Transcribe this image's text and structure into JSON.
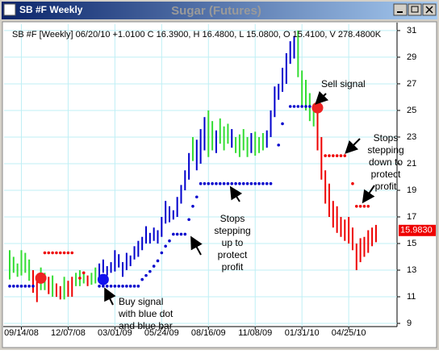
{
  "window_title": "SB #F Weekly",
  "chart_data": {
    "type": "ohlc",
    "title": "Sugar (Futures)",
    "info": "SB #F [Weekly] 06/20/10 +1.0100 C 16.3900, H 16.4800, L 15.0800, O 15.4100, V 278.4800K",
    "palette": {
      "G": "#33dd33",
      "B": "#0000cc",
      "R": "#ee0000"
    },
    "bars": {
      "signal": [
        "G",
        "G",
        "G",
        "G",
        "G",
        "G",
        "R",
        "R",
        "G",
        "G",
        "R",
        "G",
        "R",
        "R",
        "G",
        "R",
        "R",
        "G",
        "G",
        "G",
        "R",
        "G",
        "G",
        "B",
        "B",
        "B",
        "B",
        "B",
        "B",
        "B",
        "B",
        "B",
        "B",
        "B",
        "B",
        "B",
        "B",
        "B",
        "B",
        "B",
        "B",
        "B",
        "B",
        "B",
        "B",
        "B",
        "B",
        "G",
        "B",
        "B",
        "B",
        "G",
        "G",
        "B",
        "G",
        "G",
        "G",
        "B",
        "G",
        "G",
        "G",
        "G",
        "B",
        "G",
        "G",
        "G",
        "B",
        "B",
        "B",
        "B",
        "B",
        "B",
        "B",
        "B",
        "G",
        "G",
        "G",
        "G",
        "G",
        "R",
        "R",
        "R",
        "R",
        "R",
        "R",
        "R",
        "R",
        "R",
        "R",
        "R",
        "R",
        "R",
        "R",
        "R",
        "R"
      ],
      "high": [
        14.5,
        14.0,
        13.5,
        14.5,
        14.3,
        13.8,
        13.0,
        12.5,
        13.2,
        12.8,
        12.5,
        12.6,
        12.0,
        11.8,
        12.5,
        12.2,
        12.5,
        12.8,
        13.0,
        12.8,
        12.6,
        12.8,
        13.2,
        13.5,
        13.8,
        13.3,
        13.6,
        14.5,
        14.2,
        13.6,
        14.3,
        14.1,
        14.8,
        15.2,
        15.5,
        16.3,
        15.8,
        16.2,
        16.0,
        17.0,
        18.2,
        17.8,
        17.5,
        18.5,
        19.4,
        20.5,
        21.8,
        23.0,
        22.8,
        23.6,
        24.5,
        25.0,
        24.2,
        23.5,
        24.4,
        23.8,
        24.0,
        23.6,
        23.0,
        23.2,
        23.6,
        23.0,
        23.3,
        23.4,
        23.0,
        23.3,
        23.5,
        25.0,
        26.8,
        27.0,
        28.2,
        29.3,
        30.2,
        30.6,
        31.0,
        28.0,
        27.3,
        26.3,
        25.5,
        25.0,
        23.0,
        20.5,
        19.5,
        18.2,
        17.8,
        17.0,
        16.8,
        17.0,
        16.2,
        15.0,
        15.4,
        15.5,
        16.0,
        16.2,
        16.4
      ],
      "low": [
        12.3,
        12.8,
        12.5,
        12.6,
        12.8,
        12.2,
        11.3,
        10.6,
        11.5,
        11.5,
        11.2,
        11.0,
        11.0,
        10.8,
        10.8,
        11.0,
        11.0,
        11.8,
        11.8,
        12.0,
        11.8,
        11.9,
        12.0,
        12.2,
        12.8,
        12.6,
        12.8,
        12.9,
        13.2,
        12.5,
        13.0,
        13.3,
        13.8,
        14.0,
        14.5,
        15.0,
        15.0,
        15.2,
        15.0,
        15.5,
        16.5,
        16.6,
        16.8,
        17.0,
        18.0,
        19.0,
        19.8,
        21.2,
        20.5,
        21.0,
        22.0,
        21.5,
        22.0,
        21.8,
        22.5,
        22.0,
        22.5,
        22.2,
        21.8,
        21.5,
        22.0,
        21.5,
        21.8,
        21.6,
        21.8,
        22.0,
        22.2,
        23.0,
        24.5,
        25.8,
        26.4,
        27.0,
        28.5,
        28.9,
        27.5,
        25.3,
        25.0,
        24.2,
        23.8,
        22.0,
        19.8,
        18.0,
        17.0,
        16.2,
        15.8,
        15.5,
        15.2,
        15.0,
        14.5,
        13.0,
        13.6,
        14.0,
        14.3,
        14.8,
        15.1
      ]
    },
    "stops": [
      {
        "color": "#0000cc",
        "values": [
          11.8,
          11.8,
          11.8,
          11.8,
          11.8,
          11.8,
          11.8,
          null,
          null,
          null,
          null,
          null,
          null,
          null,
          null,
          null,
          null,
          null,
          null,
          null,
          null,
          null,
          null,
          11.8,
          11.8,
          11.8,
          11.8,
          11.8,
          11.8,
          11.8,
          11.8,
          11.8,
          11.8,
          11.8,
          12.3,
          12.6,
          12.9,
          13.3,
          13.7,
          14.3,
          14.8,
          15.2,
          15.7,
          15.7,
          15.7,
          15.7,
          16.8,
          17.8,
          18.5,
          19.5,
          19.5,
          19.5,
          19.5,
          19.5,
          19.5,
          19.5,
          19.5,
          19.5,
          19.5,
          19.5,
          19.5,
          19.5,
          19.5,
          19.5,
          19.5,
          19.5,
          19.5,
          19.5,
          null,
          22.4,
          24.0,
          null,
          25.3,
          25.3,
          25.3,
          25.3,
          25.3,
          25.3,
          25.3,
          25.3,
          null,
          null,
          null,
          null,
          null,
          null,
          null,
          null,
          null,
          null,
          null,
          null,
          null,
          null,
          null
        ]
      },
      {
        "color": "#ee0000",
        "values": [
          null,
          null,
          null,
          null,
          null,
          null,
          null,
          null,
          null,
          14.3,
          14.3,
          14.3,
          14.3,
          14.3,
          14.3,
          14.3,
          14.3,
          null,
          12.4,
          12.8,
          null,
          null,
          null,
          null,
          null,
          null,
          null,
          null,
          null,
          null,
          null,
          null,
          null,
          null,
          null,
          null,
          null,
          null,
          null,
          null,
          null,
          null,
          null,
          null,
          null,
          null,
          null,
          null,
          null,
          null,
          null,
          null,
          null,
          null,
          null,
          null,
          null,
          null,
          null,
          null,
          null,
          null,
          null,
          null,
          null,
          null,
          null,
          null,
          null,
          null,
          null,
          null,
          null,
          null,
          null,
          null,
          null,
          null,
          null,
          null,
          null,
          21.6,
          21.6,
          21.6,
          21.6,
          21.6,
          21.6,
          null,
          19.5,
          17.8,
          17.8,
          17.8,
          17.8,
          null,
          null
        ]
      }
    ],
    "signals": [
      {
        "x": 8,
        "value": 12.4,
        "color": "#ee2222"
      },
      {
        "x": 24,
        "value": 12.3,
        "color": "#1111ee"
      },
      {
        "x": 79,
        "value": 25.2,
        "color": "#ee2222"
      }
    ],
    "last_price": {
      "value": 15.983,
      "label": "15.9830"
    },
    "xlim": [
      -1.45,
      99.4
    ],
    "ylim": [
      8.76,
      31.48
    ],
    "xticks": [
      {
        "value": 3,
        "label": "09/14/08"
      },
      {
        "value": 15,
        "label": "12/07/08"
      },
      {
        "value": 27,
        "label": "03/01/09"
      },
      {
        "value": 39,
        "label": "05/24/09"
      },
      {
        "value": 51,
        "label": "08/16/09"
      },
      {
        "value": 63,
        "label": "11/08/09"
      },
      {
        "value": 75,
        "label": "01/31/10"
      },
      {
        "value": 87,
        "label": "04/25/10"
      }
    ],
    "yticks": [
      9,
      11,
      13,
      15,
      17,
      19,
      21,
      23,
      25,
      27,
      29,
      31
    ],
    "grid": true,
    "annotations": {
      "sell": [
        "Sell signal"
      ],
      "stops_down": [
        "Stops",
        "stepping",
        "down to",
        "protect",
        "profit"
      ],
      "stops_up": [
        "Stops",
        "stepping",
        "up to",
        "protect",
        "profit"
      ],
      "buy": [
        "Buy signal",
        "with blue dot",
        "and blue bar"
      ]
    }
  }
}
